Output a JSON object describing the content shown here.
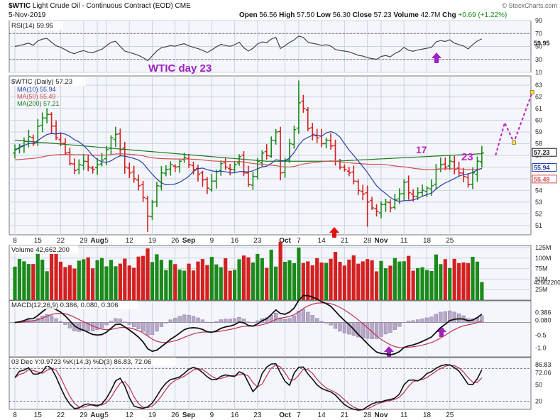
{
  "header": {
    "symbol": "$WTIC",
    "name": "Light Crude Oil - Continuous Contract (EOD)",
    "exchange": "CME",
    "date": "5-Nov-2019",
    "open_label": "Open",
    "open": "56.56",
    "high_label": "High",
    "high": "57.50",
    "low_label": "Low",
    "low": "56.30",
    "close_label": "Close",
    "close": "57.23",
    "volume_label": "Volume",
    "volume": "42.7M",
    "chg_label": "Chg",
    "chg": "+0.69 (+1.22%)",
    "brand": "© StockCharts.com"
  },
  "colors": {
    "up": "#1b8a1b",
    "down": "#d42020",
    "ma10": "#2a3fa8",
    "ma50": "#d05050",
    "ma200": "#1f7a1f",
    "annotation": "#a020c0",
    "projection": "#c020c0",
    "grid": "#c9d4e3",
    "panel_bg": "#f4f6fb"
  },
  "x_axis": {
    "tick_labels": [
      "8",
      "15",
      "22",
      "29",
      "Aug",
      "5",
      "12",
      "19",
      "26",
      "Sep",
      "9",
      "16",
      "23",
      "Oct",
      "7",
      "14",
      "21",
      "28",
      "Nov",
      "11",
      "18",
      "25"
    ],
    "tick_bars": [
      0,
      5,
      10,
      15,
      18,
      20,
      25,
      30,
      35,
      38,
      43,
      48,
      53,
      59,
      62,
      67,
      72,
      77,
      80,
      85,
      90,
      95
    ]
  },
  "chart_data": [
    {
      "type": "line",
      "panel": "rsi",
      "legend": "RSI(14) 59.95",
      "last": "59.95",
      "ylim": [
        10,
        90
      ],
      "ticks": [
        "90",
        "70",
        "50",
        "30",
        "10"
      ],
      "ref_lines": [
        70,
        30
      ]
    },
    {
      "type": "ohlc",
      "panel": "price",
      "legend": "$WTIC (Daily) 57.23",
      "ylim": [
        50.2,
        63.8
      ],
      "ticks": [
        "63",
        "62",
        "61",
        "60",
        "59",
        "58",
        "57",
        "56",
        "55",
        "54",
        "53",
        "52",
        "51"
      ],
      "price_labels": [
        "57.23",
        "55.94",
        "55.49"
      ],
      "closes": [
        57.5,
        57.8,
        58.2,
        58.6,
        58.0,
        59.5,
        60.2,
        60.5,
        59.5,
        58.5,
        58.0,
        57.2,
        56.3,
        55.7,
        56.2,
        56.5,
        56.0,
        55.8,
        56.2,
        56.6,
        57.5,
        58.5,
        58.8,
        57.5,
        56.0,
        55.5,
        55.0,
        54.4,
        53.4,
        51.8,
        53.0,
        54.4,
        55.5,
        55.8,
        56.2,
        56.0,
        56.5,
        56.8,
        56.2,
        55.8,
        55.4,
        54.9,
        54.2,
        54.8,
        55.6,
        56.3,
        56.0,
        55.8,
        56.2,
        56.9,
        55.5,
        54.5,
        55.2,
        56.5,
        57.2,
        57.0,
        58.3,
        59.0,
        55.5,
        56.6,
        58.0,
        59.2,
        61.5,
        61.0,
        59.3,
        58.8,
        58.5,
        58.0,
        58.3,
        57.8,
        56.5,
        56.0,
        55.8,
        55.5,
        54.8,
        54.0,
        53.7,
        53.0,
        52.5,
        52.2,
        52.8,
        53.0,
        52.5,
        53.2,
        53.7,
        54.7,
        53.8,
        53.5,
        53.8,
        54.0,
        54.2,
        54.4,
        55.8,
        56.2,
        56.0,
        56.5,
        55.8,
        55.5,
        55.2,
        54.5,
        55.5,
        56.5,
        57.2
      ],
      "projection": [
        [
          105,
          57.0
        ],
        [
          107,
          59.8
        ],
        [
          109,
          58.1
        ],
        [
          113,
          62.4
        ]
      ],
      "series": [
        {
          "name": "MA(10)",
          "legend": "MA(10) 55.94"
        },
        {
          "name": "MA(50)",
          "legend": "MA(50) 55.49"
        },
        {
          "name": "MA(200)",
          "legend": "MA(200) 57.21"
        }
      ],
      "annotations": [
        {
          "text": "WTIC day 23"
        },
        {
          "text": "17"
        },
        {
          "text": "23"
        }
      ]
    },
    {
      "type": "bar",
      "panel": "volume",
      "legend": "Volume 42,662,200",
      "ylim": [
        0,
        130
      ],
      "ticks": [
        "125M",
        "100M",
        "75M",
        "50M",
        "25M"
      ],
      "last_label": "42662200"
    },
    {
      "type": "histogram",
      "panel": "macd",
      "legend": "MACD(12,26,9) 0.386, 0.080, 0.306",
      "ylim": [
        -1.35,
        0.85
      ],
      "ticks": [
        "0.386",
        "0.080",
        "-0.5",
        "-1.0"
      ]
    },
    {
      "type": "line",
      "panel": "stochastics",
      "legend": "03 Dec Y:0.9723 %K(14,3) %D(3) 86.83, 72.06",
      "ylim": [
        5,
        100
      ],
      "ticks": [
        "86.83",
        "72.06",
        "50",
        "20"
      ],
      "ref_lines": [
        80,
        20
      ]
    }
  ]
}
